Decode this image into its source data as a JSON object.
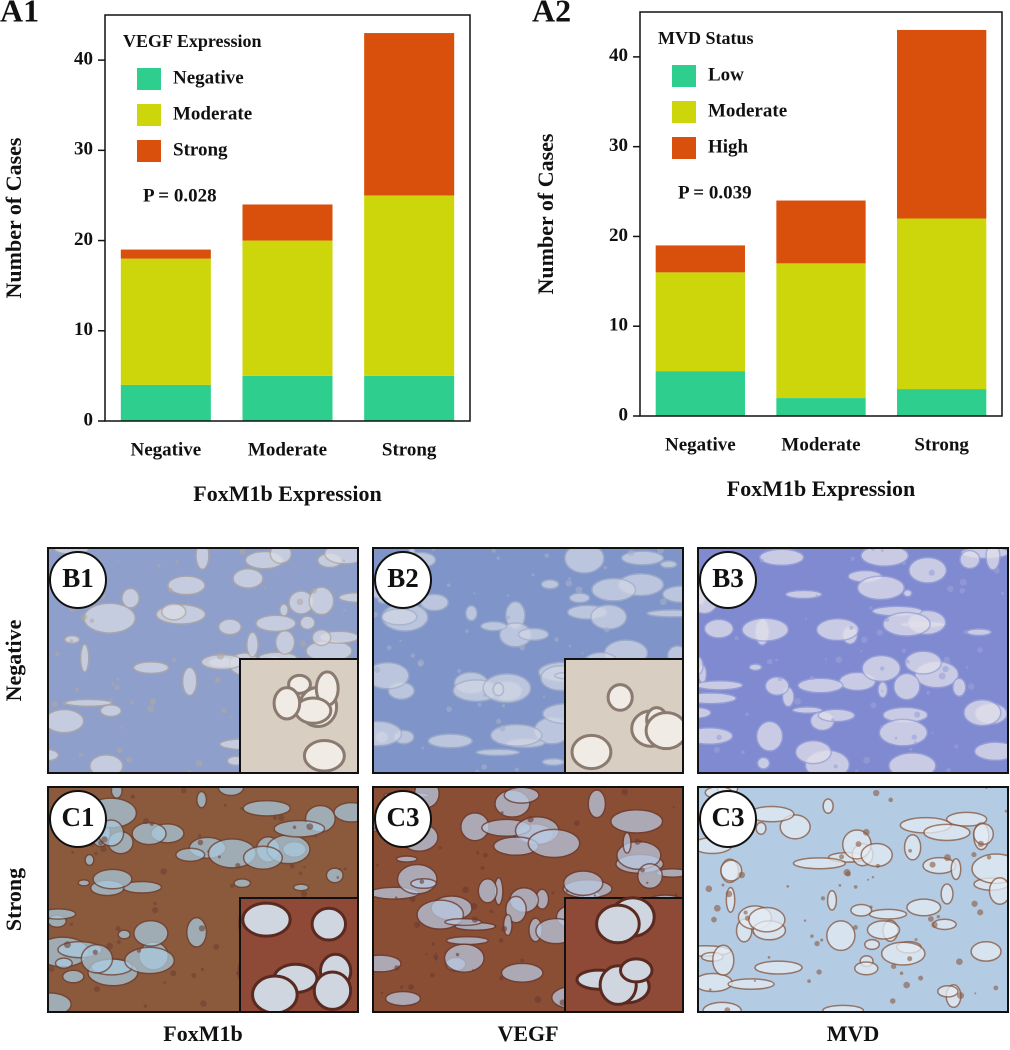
{
  "chart_data": [
    {
      "type": "bar",
      "stacked": true,
      "panel_label": "A1",
      "legend_title": "VEGF Expression",
      "xlabel": "FoxM1b Expression",
      "ylabel": "Number of Cases",
      "annotation": "P = 0.028",
      "categories": [
        "Negative",
        "Moderate",
        "Strong"
      ],
      "series": [
        {
          "name": "Negative",
          "color": "#2ecf8e",
          "values": [
            4,
            5,
            5
          ]
        },
        {
          "name": "Moderate",
          "color": "#ccd60a",
          "values": [
            14,
            15,
            20
          ]
        },
        {
          "name": "Strong",
          "color": "#d9500c",
          "values": [
            1,
            4,
            18
          ]
        }
      ],
      "ylim": [
        0,
        45
      ],
      "yticks": [
        0,
        10,
        20,
        30,
        40
      ]
    },
    {
      "type": "bar",
      "stacked": true,
      "panel_label": "A2",
      "legend_title": "MVD Status",
      "xlabel": "FoxM1b Expression",
      "ylabel": "Number of Cases",
      "annotation": "P = 0.039",
      "categories": [
        "Negative",
        "Moderate",
        "Strong"
      ],
      "series": [
        {
          "name": "Low",
          "color": "#2ecf8e",
          "values": [
            5,
            2,
            3
          ]
        },
        {
          "name": "Moderate",
          "color": "#ccd60a",
          "values": [
            11,
            15,
            19
          ]
        },
        {
          "name": "High",
          "color": "#d9500c",
          "values": [
            3,
            7,
            21
          ]
        }
      ],
      "ylim": [
        0,
        45
      ],
      "yticks": [
        0,
        10,
        20,
        30,
        40
      ]
    }
  ],
  "panels": {
    "rows": [
      "Negative",
      "Strong"
    ],
    "columns": [
      "FoxM1b",
      "VEGF",
      "MVD"
    ],
    "labels": [
      [
        "B1",
        "B2",
        "B3"
      ],
      [
        "C1",
        "C3",
        "C3"
      ]
    ]
  }
}
